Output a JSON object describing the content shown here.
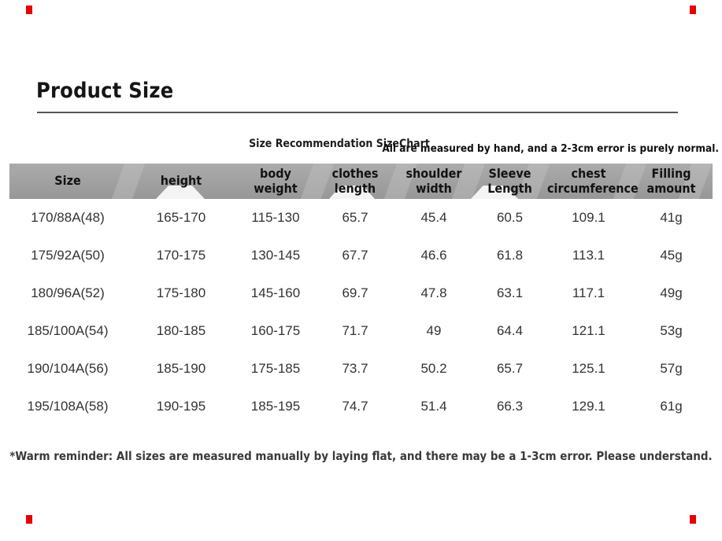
{
  "page": {
    "background": "#ffffff",
    "corner_mark_color": "#e60000",
    "rule_color": "#565656"
  },
  "title": "Product Size",
  "subtitle": "Size Recommendation SizeChart",
  "note_right": "All are measured by hand, and a 2-3cm error is purely normal.",
  "footer": "*Warm reminder: All sizes are measured manually by laying flat, and there may be a 1-3cm error. Please understand.",
  "table": {
    "header_bg": "#9e9e9e",
    "columns": [
      {
        "key": "size",
        "label": "Size"
      },
      {
        "key": "height",
        "label": "height"
      },
      {
        "key": "body-weight",
        "label": "body weight"
      },
      {
        "key": "clothes-length",
        "label": "clothes\nlength"
      },
      {
        "key": "shoulder-width",
        "label": "shoulder\nwidth"
      },
      {
        "key": "sleeve-length",
        "label": "Sleeve\nLength"
      },
      {
        "key": "chest-circumference",
        "label": "chest\ncircumference"
      },
      {
        "key": "filling-amount",
        "label": "Filling amount"
      }
    ],
    "rows": [
      [
        "170/88A(48)",
        "165-170",
        "115-130",
        "65.7",
        "45.4",
        "60.5",
        "109.1",
        "41g"
      ],
      [
        "175/92A(50)",
        "170-175",
        "130-145",
        "67.7",
        "46.6",
        "61.8",
        "113.1",
        "45g"
      ],
      [
        "180/96A(52)",
        "175-180",
        "145-160",
        "69.7",
        "47.8",
        "63.1",
        "117.1",
        "49g"
      ],
      [
        "185/100A(54)",
        "180-185",
        "160-175",
        "71.7",
        "49",
        "64.4",
        "121.1",
        "53g"
      ],
      [
        "190/104A(56)",
        "185-190",
        "175-185",
        "73.7",
        "50.2",
        "65.7",
        "125.1",
        "57g"
      ],
      [
        "195/108A(58)",
        "190-195",
        "185-195",
        "74.7",
        "51.4",
        "66.3",
        "129.1",
        "61g"
      ]
    ]
  },
  "chart_data": {
    "type": "table",
    "title": "Size Recommendation SizeChart",
    "columns": [
      "Size",
      "height",
      "body weight",
      "clothes length",
      "shoulder width",
      "Sleeve Length",
      "chest circumference",
      "Filling amount"
    ],
    "rows": [
      [
        "170/88A(48)",
        "165-170",
        "115-130",
        65.7,
        45.4,
        60.5,
        109.1,
        "41g"
      ],
      [
        "175/92A(50)",
        "170-175",
        "130-145",
        67.7,
        46.6,
        61.8,
        113.1,
        "45g"
      ],
      [
        "180/96A(52)",
        "175-180",
        "145-160",
        69.7,
        47.8,
        63.1,
        117.1,
        "49g"
      ],
      [
        "185/100A(54)",
        "180-185",
        "160-175",
        71.7,
        49,
        64.4,
        121.1,
        "53g"
      ],
      [
        "190/104A(56)",
        "185-190",
        "175-185",
        73.7,
        50.2,
        65.7,
        125.1,
        "57g"
      ],
      [
        "195/108A(58)",
        "190-195",
        "185-195",
        74.7,
        51.4,
        66.3,
        129.1,
        "61g"
      ]
    ]
  }
}
